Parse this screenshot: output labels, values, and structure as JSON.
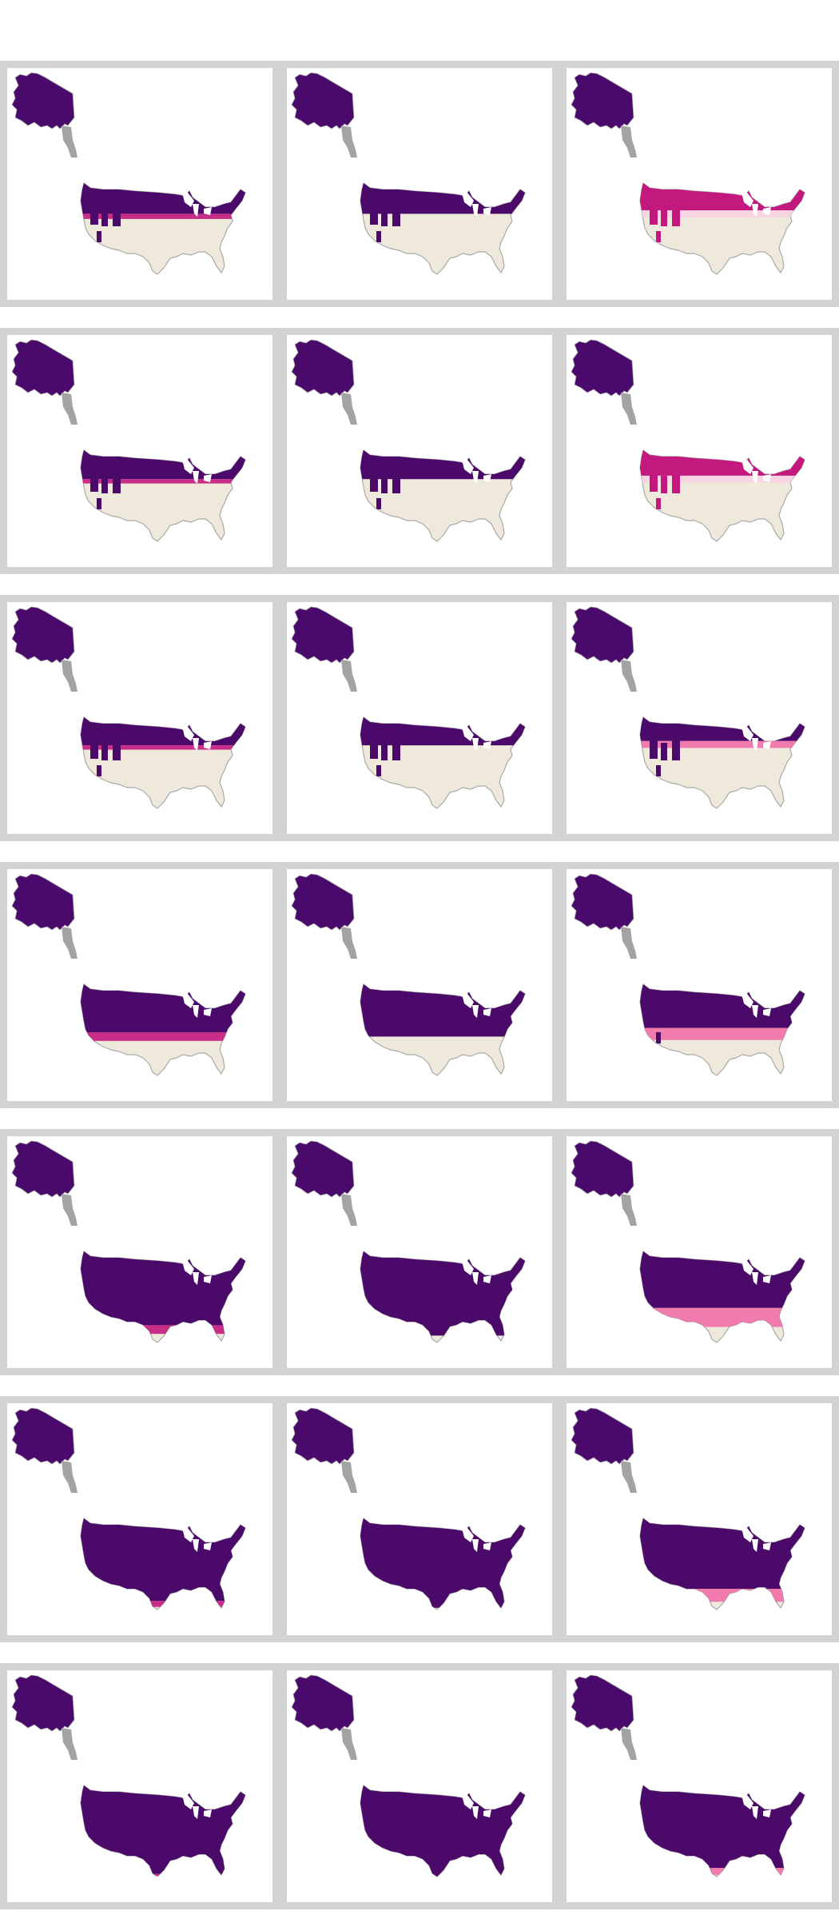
{
  "figure": {
    "rows": 7,
    "columns": 3,
    "background": "#ffffff",
    "panel_frame_color": "#d3d3d3"
  },
  "palette": {
    "alaska_fill": "#4a0a6b",
    "alaska_panhandle": "#a3a3a3",
    "land_fill": "#efe9dc",
    "land_outline": "#a9a9a9",
    "lakes": "#ffffff",
    "low": "#f06fa6",
    "mid": "#c3187e",
    "high": "#4b0a6a",
    "pale": "#f9d3e4"
  },
  "panels": [
    {
      "row": 1,
      "col": 1,
      "band": 0.3,
      "belt": 0.06,
      "tint": "mix"
    },
    {
      "row": 1,
      "col": 2,
      "band": 0.3,
      "belt": 0.0,
      "tint": "dark"
    },
    {
      "row": 1,
      "col": 3,
      "band": 0.26,
      "belt": 0.08,
      "tint": "pale"
    },
    {
      "row": 2,
      "col": 1,
      "band": 0.28,
      "belt": 0.05,
      "tint": "mix"
    },
    {
      "row": 2,
      "col": 2,
      "band": 0.28,
      "belt": 0.0,
      "tint": "dark"
    },
    {
      "row": 2,
      "col": 3,
      "band": 0.24,
      "belt": 0.08,
      "tint": "pale"
    },
    {
      "row": 3,
      "col": 1,
      "band": 0.27,
      "belt": 0.05,
      "tint": "mix"
    },
    {
      "row": 3,
      "col": 2,
      "band": 0.27,
      "belt": 0.0,
      "tint": "dark"
    },
    {
      "row": 3,
      "col": 3,
      "band": 0.22,
      "belt": 0.08,
      "tint": "pink"
    },
    {
      "row": 4,
      "col": 1,
      "band": 0.5,
      "belt": 0.1,
      "tint": "mix"
    },
    {
      "row": 4,
      "col": 2,
      "band": 0.55,
      "belt": 0.0,
      "tint": "dark"
    },
    {
      "row": 4,
      "col": 3,
      "band": 0.45,
      "belt": 0.14,
      "tint": "pink"
    },
    {
      "row": 5,
      "col": 1,
      "band": 0.8,
      "belt": 0.1,
      "tint": "mix"
    },
    {
      "row": 5,
      "col": 2,
      "band": 0.92,
      "belt": 0.0,
      "tint": "dark"
    },
    {
      "row": 5,
      "col": 3,
      "band": 0.6,
      "belt": 0.22,
      "tint": "pink"
    },
    {
      "row": 6,
      "col": 1,
      "band": 0.9,
      "belt": 0.07,
      "tint": "mix"
    },
    {
      "row": 6,
      "col": 2,
      "band": 0.98,
      "belt": 0.0,
      "tint": "dark"
    },
    {
      "row": 6,
      "col": 3,
      "band": 0.76,
      "belt": 0.15,
      "tint": "pink"
    },
    {
      "row": 7,
      "col": 1,
      "band": 0.97,
      "belt": 0.02,
      "tint": "mix"
    },
    {
      "row": 7,
      "col": 2,
      "band": 1.0,
      "belt": 0.0,
      "tint": "dark"
    },
    {
      "row": 7,
      "col": 3,
      "band": 0.9,
      "belt": 0.08,
      "tint": "pink"
    }
  ]
}
